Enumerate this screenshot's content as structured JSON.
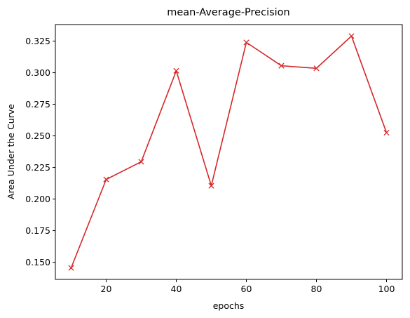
{
  "chart_data": {
    "type": "line",
    "title": "mean-Average-Precision",
    "xlabel": "epochs",
    "ylabel": "Area Under the Curve",
    "x": [
      10,
      20,
      30,
      40,
      50,
      60,
      70,
      80,
      90,
      100
    ],
    "series": [
      {
        "values": [
          0.1455,
          0.2155,
          0.2295,
          0.3015,
          0.2105,
          0.324,
          0.3055,
          0.3035,
          0.329,
          0.2525
        ],
        "color": "#d62728",
        "marker": "x"
      }
    ],
    "xlim": [
      5.5,
      104.5
    ],
    "ylim": [
      0.1364,
      0.3381
    ],
    "xticks": [
      20,
      40,
      60,
      80,
      100
    ],
    "xtick_labels": [
      "20",
      "40",
      "60",
      "80",
      "100"
    ],
    "yticks": [
      0.15,
      0.175,
      0.2,
      0.225,
      0.25,
      0.275,
      0.3,
      0.325
    ],
    "ytick_labels": [
      "0.150",
      "0.175",
      "0.200",
      "0.225",
      "0.250",
      "0.275",
      "0.300",
      "0.325"
    ],
    "grid": false,
    "legend": "none"
  }
}
